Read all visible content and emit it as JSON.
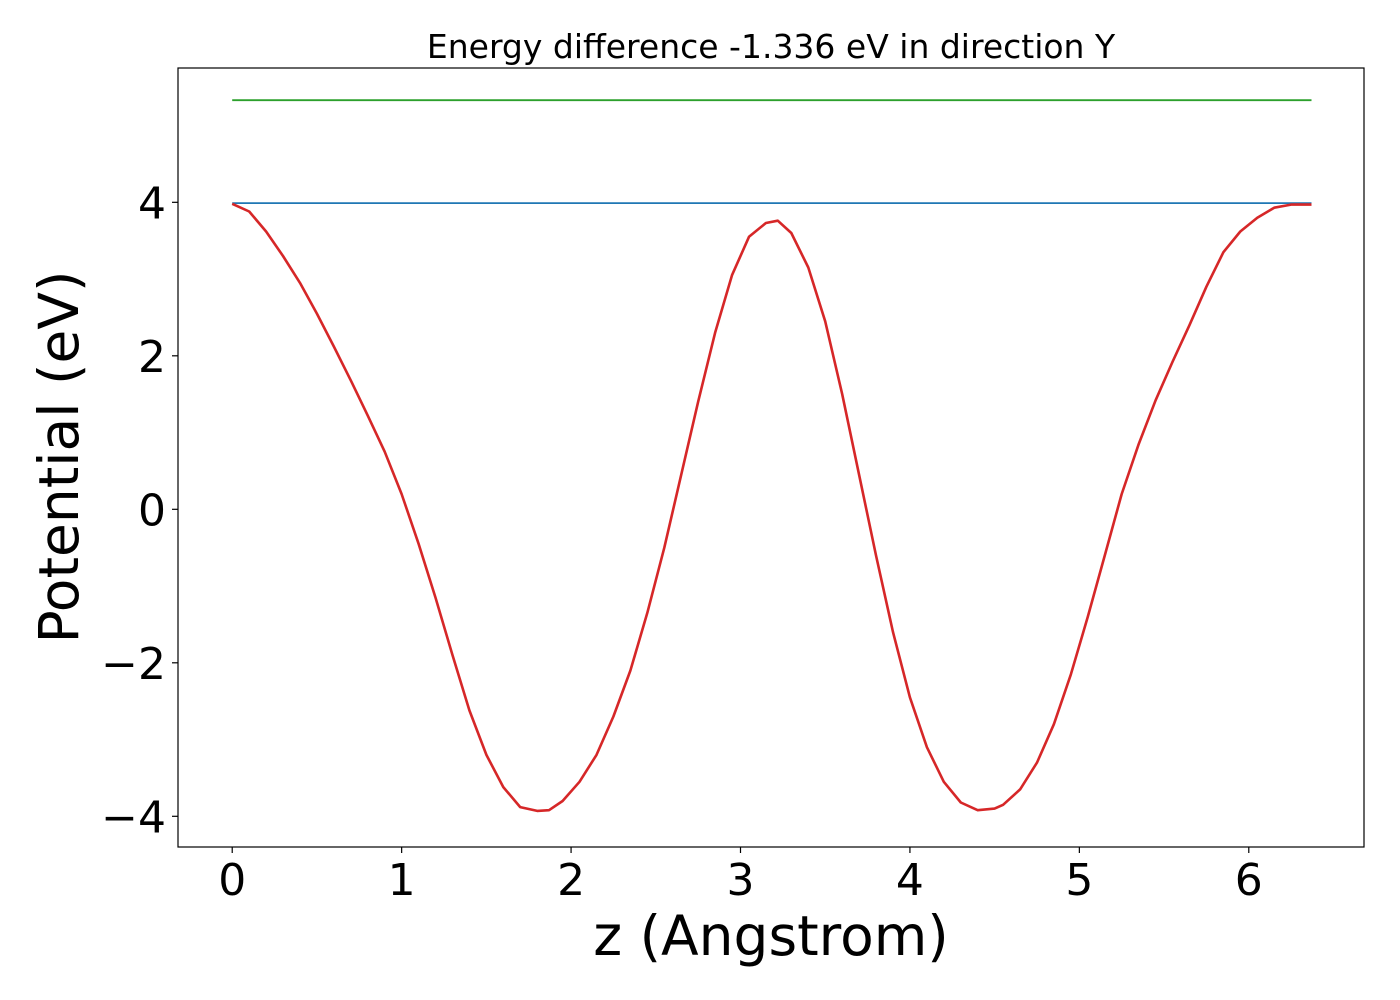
{
  "chart_data": {
    "type": "line",
    "title": "Energy difference -1.336 eV in direction Y",
    "xlabel": "z (Angstrom)",
    "ylabel": "Potential (eV)",
    "xlim": [
      -0.32,
      6.68
    ],
    "ylim": [
      -4.4,
      5.75
    ],
    "xticks": [
      0,
      1,
      2,
      3,
      4,
      5,
      6
    ],
    "xtick_labels": [
      "0",
      "1",
      "2",
      "3",
      "4",
      "5",
      "6"
    ],
    "yticks": [
      -4,
      -2,
      0,
      2,
      4
    ],
    "ytick_labels": [
      "−4",
      "−2",
      "0",
      "2",
      "4"
    ],
    "grid": false,
    "legend": "none",
    "series": [
      {
        "color": "#2ca02c",
        "x": [
          0,
          6.37
        ],
        "y": [
          5.33,
          5.33
        ]
      },
      {
        "color": "#1f77b4",
        "x": [
          0,
          6.37
        ],
        "y": [
          3.99,
          3.99
        ]
      },
      {
        "color": "#d62728",
        "x": [
          0,
          0.1,
          0.2,
          0.3,
          0.4,
          0.5,
          0.6,
          0.7,
          0.8,
          0.9,
          1.0,
          1.1,
          1.2,
          1.3,
          1.4,
          1.5,
          1.6,
          1.7,
          1.8,
          1.87,
          1.95,
          2.05,
          2.15,
          2.25,
          2.35,
          2.45,
          2.55,
          2.65,
          2.75,
          2.85,
          2.95,
          3.05,
          3.15,
          3.22,
          3.3,
          3.4,
          3.5,
          3.6,
          3.7,
          3.8,
          3.9,
          4.0,
          4.1,
          4.2,
          4.3,
          4.4,
          4.5,
          4.55,
          4.65,
          4.75,
          4.85,
          4.95,
          5.05,
          5.15,
          5.25,
          5.35,
          5.45,
          5.55,
          5.65,
          5.75,
          5.85,
          5.95,
          6.05,
          6.15,
          6.25,
          6.37
        ],
        "y": [
          3.98,
          3.88,
          3.62,
          3.3,
          2.95,
          2.55,
          2.12,
          1.68,
          1.22,
          0.75,
          0.2,
          -0.45,
          -1.15,
          -1.9,
          -2.62,
          -3.2,
          -3.62,
          -3.88,
          -3.93,
          -3.92,
          -3.8,
          -3.55,
          -3.2,
          -2.7,
          -2.1,
          -1.35,
          -0.5,
          0.45,
          1.4,
          2.3,
          3.05,
          3.55,
          3.73,
          3.76,
          3.6,
          3.15,
          2.45,
          1.5,
          0.45,
          -0.6,
          -1.6,
          -2.45,
          -3.1,
          -3.55,
          -3.82,
          -3.92,
          -3.9,
          -3.85,
          -3.65,
          -3.3,
          -2.8,
          -2.15,
          -1.4,
          -0.6,
          0.2,
          0.85,
          1.42,
          1.92,
          2.4,
          2.9,
          3.35,
          3.62,
          3.8,
          3.93,
          3.97,
          3.97
        ]
      }
    ]
  }
}
